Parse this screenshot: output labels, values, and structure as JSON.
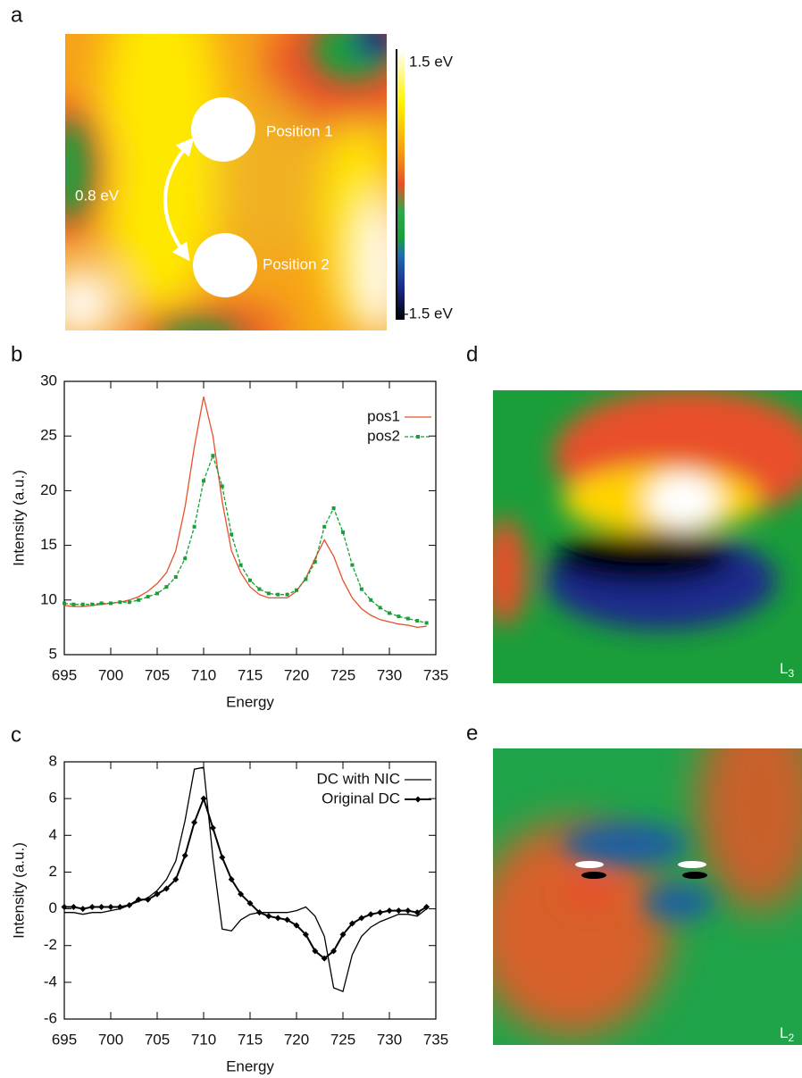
{
  "panels": {
    "a": {
      "letter": "a",
      "colorbar_max": "1.5 eV",
      "colorbar_min": "-1.5 eV",
      "barrier": "0.8 eV",
      "position1": "Position 1",
      "position2": "Position 2"
    },
    "d": {
      "letter": "d",
      "label_main": "L",
      "label_sub": "3"
    },
    "e": {
      "letter": "e",
      "label_main": "L",
      "label_sub": "2"
    }
  },
  "chart_data": [
    {
      "type": "line",
      "letter": "b",
      "x_label": "Energy",
      "y_label": "Intensity (a.u.)",
      "x": [
        695,
        696,
        697,
        698,
        699,
        700,
        701,
        702,
        703,
        704,
        705,
        706,
        707,
        708,
        709,
        710,
        711,
        712,
        713,
        714,
        715,
        716,
        717,
        718,
        719,
        720,
        721,
        722,
        723,
        724,
        725,
        726,
        727,
        728,
        729,
        730,
        731,
        732,
        733,
        734
      ],
      "series": [
        {
          "name": "pos1",
          "color": "#e8502a",
          "dashed": false,
          "marker": "none",
          "values": [
            9.5,
            9.4,
            9.4,
            9.5,
            9.6,
            9.7,
            9.8,
            10.0,
            10.3,
            10.8,
            11.5,
            12.5,
            14.5,
            18.5,
            24.0,
            28.6,
            25.0,
            19.0,
            14.5,
            12.5,
            11.2,
            10.5,
            10.2,
            10.2,
            10.2,
            10.8,
            12.0,
            13.8,
            15.5,
            14.0,
            11.8,
            10.2,
            9.2,
            8.6,
            8.2,
            8.0,
            7.8,
            7.7,
            7.5,
            7.6
          ]
        },
        {
          "name": "pos2",
          "color": "#1a9e3a",
          "dashed": true,
          "marker": "square",
          "values": [
            9.7,
            9.6,
            9.6,
            9.6,
            9.7,
            9.7,
            9.8,
            9.8,
            10.0,
            10.3,
            10.6,
            11.2,
            12.1,
            13.8,
            16.7,
            20.9,
            23.2,
            20.4,
            16.0,
            13.2,
            11.8,
            11.0,
            10.6,
            10.5,
            10.5,
            10.9,
            11.9,
            13.5,
            16.7,
            18.4,
            16.2,
            13.2,
            11.0,
            10.0,
            9.3,
            8.8,
            8.5,
            8.3,
            8.1,
            7.9
          ]
        }
      ],
      "xlim": [
        695,
        735
      ],
      "xticks": [
        695,
        700,
        705,
        710,
        715,
        720,
        725,
        730,
        735
      ],
      "ylim": [
        5,
        30
      ],
      "yticks": [
        5,
        10,
        15,
        20,
        25,
        30
      ]
    },
    {
      "type": "line",
      "letter": "c",
      "x_label": "Energy",
      "y_label": "Intensity (a.u.)",
      "x": [
        695,
        696,
        697,
        698,
        699,
        700,
        701,
        702,
        703,
        704,
        705,
        706,
        707,
        708,
        709,
        710,
        711,
        712,
        713,
        714,
        715,
        716,
        717,
        718,
        719,
        720,
        721,
        722,
        723,
        724,
        725,
        726,
        727,
        728,
        729,
        730,
        731,
        732,
        733,
        734
      ],
      "series": [
        {
          "name": "DC with NIC",
          "color": "#000000",
          "dashed": false,
          "marker": "none",
          "values": [
            -0.2,
            -0.2,
            -0.3,
            -0.2,
            -0.2,
            -0.1,
            0.0,
            0.2,
            0.4,
            0.6,
            1.0,
            1.6,
            2.6,
            4.8,
            7.6,
            7.7,
            2.8,
            -1.1,
            -1.2,
            -0.6,
            -0.3,
            -0.2,
            -0.2,
            -0.2,
            -0.2,
            -0.1,
            0.1,
            -0.4,
            -1.5,
            -4.3,
            -4.5,
            -2.5,
            -1.5,
            -1.0,
            -0.7,
            -0.5,
            -0.3,
            -0.3,
            -0.4,
            0.0
          ]
        },
        {
          "name": "Original DC",
          "color": "#000000",
          "dashed": false,
          "marker": "diamond",
          "values": [
            0.1,
            0.1,
            0.0,
            0.1,
            0.1,
            0.1,
            0.1,
            0.2,
            0.5,
            0.5,
            0.8,
            1.1,
            1.6,
            2.9,
            4.7,
            6.0,
            4.4,
            2.8,
            1.6,
            0.8,
            0.3,
            -0.2,
            -0.4,
            -0.5,
            -0.6,
            -0.9,
            -1.4,
            -2.3,
            -2.7,
            -2.3,
            -1.4,
            -0.8,
            -0.5,
            -0.3,
            -0.2,
            -0.1,
            -0.1,
            -0.1,
            -0.2,
            0.1
          ]
        }
      ],
      "xlim": [
        695,
        735
      ],
      "xticks": [
        695,
        700,
        705,
        710,
        715,
        720,
        725,
        730,
        735
      ],
      "ylim": [
        -6,
        8
      ],
      "yticks": [
        -6,
        -4,
        -2,
        0,
        2,
        4,
        6,
        8
      ]
    }
  ]
}
